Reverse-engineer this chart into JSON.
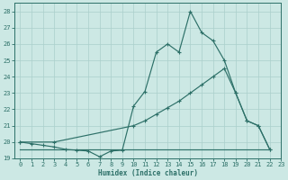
{
  "line1_x": [
    0,
    1,
    2,
    3,
    4,
    5,
    6,
    7,
    8,
    9,
    10,
    11,
    12,
    13,
    14,
    15,
    16,
    17,
    18,
    19,
    20,
    21,
    22
  ],
  "line1_y": [
    20.0,
    19.9,
    19.8,
    19.7,
    19.55,
    19.5,
    19.45,
    19.1,
    19.45,
    19.5,
    22.2,
    23.1,
    25.5,
    26.0,
    25.5,
    28.0,
    26.7,
    26.2,
    25.0,
    23.0,
    21.3,
    21.0,
    19.55
  ],
  "line2_x": [
    0,
    3,
    10,
    11,
    12,
    13,
    14,
    15,
    16,
    17,
    18,
    19,
    20,
    21,
    22
  ],
  "line2_y": [
    20.0,
    20.0,
    21.0,
    21.3,
    21.7,
    22.1,
    22.5,
    23.0,
    23.5,
    24.0,
    24.5,
    23.0,
    21.3,
    21.0,
    19.55
  ],
  "line3_x": [
    0,
    22
  ],
  "line3_y": [
    19.55,
    19.55
  ],
  "color": "#2d7068",
  "bg_color": "#cce8e4",
  "grid_color": "#aacfcb",
  "xlabel": "Humidex (Indice chaleur)",
  "ylim": [
    19.0,
    28.5
  ],
  "xlim": [
    -0.5,
    23
  ],
  "yticks": [
    19,
    20,
    21,
    22,
    23,
    24,
    25,
    26,
    27,
    28
  ],
  "xticks": [
    0,
    1,
    2,
    3,
    4,
    5,
    6,
    7,
    8,
    9,
    10,
    11,
    12,
    13,
    14,
    15,
    16,
    17,
    18,
    19,
    20,
    21,
    22,
    23
  ],
  "axis_fontsize": 5.5,
  "tick_fontsize": 5.0,
  "marker_size": 3.0,
  "line_width": 0.85
}
